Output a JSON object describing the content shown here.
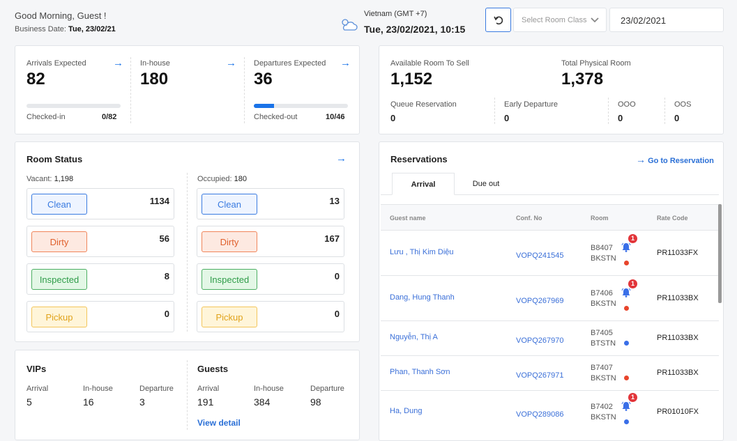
{
  "header": {
    "greeting": "Good Morning,",
    "user": "Guest !",
    "business_date_label": "Business Date:",
    "business_date": "Tue, 23/02/21",
    "timezone": "Vietnam (GMT +7)",
    "datetime": "Tue, 23/02/2021, 10:15",
    "room_class_placeholder": "Select Room Class",
    "date_value": "23/02/2021"
  },
  "stats": {
    "arrivals_label": "Arrivals Expected",
    "arrivals": "82",
    "inhouse_label": "In-house",
    "inhouse": "180",
    "departures_label": "Departures Expected",
    "departures": "36",
    "checked_in_label": "Checked-in",
    "checked_in": "0/82",
    "checked_in_progress": 0,
    "checked_out_label": "Checked-out",
    "checked_out": "10/46",
    "checked_out_progress": 0.217
  },
  "rooms": {
    "available_label": "Available Room To Sell",
    "available": "1,152",
    "total_label": "Total Physical Room",
    "total": "1,378",
    "queue_label": "Queue Reservation",
    "queue": "0",
    "early_label": "Early Departure",
    "early": "0",
    "ooo_label": "OOO",
    "ooo": "0",
    "oos_label": "OOS",
    "oos": "0"
  },
  "room_status": {
    "title": "Room Status",
    "vacant_label": "Vacant:",
    "vacant": "1,198",
    "occupied_label": "Occupied:",
    "occupied": "180",
    "vacant_items": [
      {
        "label": "Clean",
        "value": "1134"
      },
      {
        "label": "Dirty",
        "value": "56"
      },
      {
        "label": "Inspected",
        "value": "8"
      },
      {
        "label": "Pickup",
        "value": "0"
      }
    ],
    "occupied_items": [
      {
        "label": "Clean",
        "value": "13"
      },
      {
        "label": "Dirty",
        "value": "167"
      },
      {
        "label": "Inspected",
        "value": "0"
      },
      {
        "label": "Pickup",
        "value": "0"
      }
    ]
  },
  "vips": {
    "title": "VIPs",
    "arrival_label": "Arrival",
    "arrival": "5",
    "inhouse_label": "In-house",
    "inhouse": "16",
    "departure_label": "Departure",
    "departure": "3"
  },
  "guests": {
    "title": "Guests",
    "arrival_label": "Arrival",
    "arrival": "191",
    "inhouse_label": "In-house",
    "inhouse": "384",
    "departure_label": "Departure",
    "departure": "98",
    "view_detail": "View detail"
  },
  "reservations": {
    "title": "Reservations",
    "go_link": "Go to Reservation",
    "tabs": [
      "Arrival",
      "Due out"
    ],
    "columns": [
      "Guest name",
      "Conf. No",
      "Room",
      "Rate Code"
    ],
    "rows": [
      {
        "name": "Lưu , Thị Kim Diệu",
        "conf": "VOPQ241545",
        "room": "B8407",
        "type": "BKSTN",
        "bell": "1",
        "status_color": "#e8452c",
        "rate": "PR11033FX"
      },
      {
        "name": "Dang, Hung Thanh",
        "conf": "VOPQ267969",
        "room": "B7406",
        "type": "BKSTN",
        "bell": "1",
        "status_color": "#e8452c",
        "rate": "PR11033BX"
      },
      {
        "name": "Nguyễn, Thị A",
        "conf": "VOPQ267970",
        "room": "B7405",
        "type": "BTSTN",
        "status_color": "#3a6fe8",
        "rate": "PR11033BX"
      },
      {
        "name": "Phan, Thanh Sơn",
        "conf": "VOPQ267971",
        "room": "B7407",
        "type": "BKSTN",
        "status_color": "#e8452c",
        "rate": "PR11033BX"
      },
      {
        "name": "Ha, Dung",
        "conf": "VOPQ289086",
        "room": "B7402",
        "type": "BKSTN",
        "bell": "1",
        "status_color": "#3a6fe8",
        "rate": "PR01010FX"
      }
    ]
  }
}
